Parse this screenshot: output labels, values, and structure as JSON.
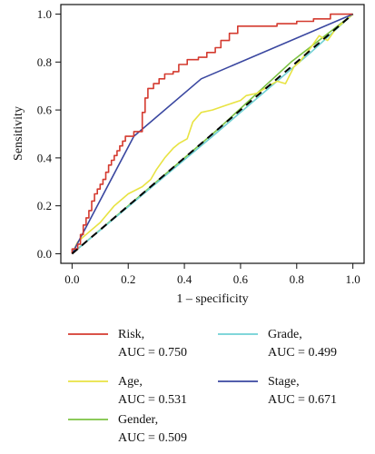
{
  "chart_data": {
    "type": "line",
    "title": "",
    "xlabel": "1 – specificity",
    "ylabel": "Sensitivity",
    "xlim": [
      -0.04,
      1.04
    ],
    "ylim": [
      -0.04,
      1.04
    ],
    "xticks": [
      "0.0",
      "0.2",
      "0.4",
      "0.6",
      "0.8",
      "1.0"
    ],
    "yticks": [
      "0.0",
      "0.2",
      "0.4",
      "0.6",
      "0.8",
      "1.0"
    ],
    "grid": false,
    "legend_position": "bottom",
    "reference_line": {
      "from": [
        0,
        0
      ],
      "to": [
        1,
        1
      ],
      "style": "dashed",
      "color": "#000000"
    },
    "series": [
      {
        "name": "Risk",
        "auc_label": "AUC = 0.750",
        "color": "#d43a2f",
        "step": true,
        "points": [
          [
            0,
            0
          ],
          [
            0,
            0.02
          ],
          [
            0.02,
            0.04
          ],
          [
            0.03,
            0.08
          ],
          [
            0.04,
            0.12
          ],
          [
            0.05,
            0.15
          ],
          [
            0.06,
            0.18
          ],
          [
            0.07,
            0.22
          ],
          [
            0.08,
            0.25
          ],
          [
            0.09,
            0.27
          ],
          [
            0.1,
            0.29
          ],
          [
            0.11,
            0.31
          ],
          [
            0.12,
            0.34
          ],
          [
            0.13,
            0.37
          ],
          [
            0.14,
            0.39
          ],
          [
            0.15,
            0.41
          ],
          [
            0.16,
            0.43
          ],
          [
            0.17,
            0.45
          ],
          [
            0.18,
            0.47
          ],
          [
            0.19,
            0.49
          ],
          [
            0.22,
            0.51
          ],
          [
            0.24,
            0.51
          ],
          [
            0.25,
            0.59
          ],
          [
            0.26,
            0.65
          ],
          [
            0.27,
            0.69
          ],
          [
            0.29,
            0.71
          ],
          [
            0.31,
            0.73
          ],
          [
            0.33,
            0.75
          ],
          [
            0.36,
            0.76
          ],
          [
            0.38,
            0.79
          ],
          [
            0.41,
            0.81
          ],
          [
            0.45,
            0.82
          ],
          [
            0.48,
            0.84
          ],
          [
            0.51,
            0.86
          ],
          [
            0.53,
            0.89
          ],
          [
            0.56,
            0.92
          ],
          [
            0.59,
            0.95
          ],
          [
            0.7,
            0.95
          ],
          [
            0.73,
            0.96
          ],
          [
            0.8,
            0.97
          ],
          [
            0.86,
            0.98
          ],
          [
            0.92,
            1.0
          ],
          [
            1.0,
            1.0
          ]
        ]
      },
      {
        "name": "Age",
        "auc_label": "AUC = 0.531",
        "color": "#e8e342",
        "step": false,
        "points": [
          [
            0,
            0
          ],
          [
            0.02,
            0.05
          ],
          [
            0.05,
            0.08
          ],
          [
            0.1,
            0.13
          ],
          [
            0.15,
            0.2
          ],
          [
            0.2,
            0.25
          ],
          [
            0.25,
            0.28
          ],
          [
            0.28,
            0.31
          ],
          [
            0.3,
            0.35
          ],
          [
            0.33,
            0.4
          ],
          [
            0.36,
            0.44
          ],
          [
            0.38,
            0.46
          ],
          [
            0.41,
            0.48
          ],
          [
            0.43,
            0.55
          ],
          [
            0.46,
            0.59
          ],
          [
            0.5,
            0.6
          ],
          [
            0.55,
            0.62
          ],
          [
            0.6,
            0.64
          ],
          [
            0.62,
            0.66
          ],
          [
            0.66,
            0.67
          ],
          [
            0.7,
            0.7
          ],
          [
            0.73,
            0.72
          ],
          [
            0.76,
            0.71
          ],
          [
            0.79,
            0.78
          ],
          [
            0.81,
            0.8
          ],
          [
            0.85,
            0.86
          ],
          [
            0.88,
            0.91
          ],
          [
            0.91,
            0.89
          ],
          [
            0.94,
            0.94
          ],
          [
            0.97,
            0.97
          ],
          [
            1.0,
            1.0
          ]
        ]
      },
      {
        "name": "Gender",
        "auc_label": "AUC = 0.509",
        "color": "#7cc242",
        "step": false,
        "points": [
          [
            0,
            0
          ],
          [
            0.52,
            0.52
          ],
          [
            0.78,
            0.8
          ],
          [
            1.0,
            1.0
          ]
        ]
      },
      {
        "name": "Grade",
        "auc_label": "AUC = 0.499",
        "color": "#6fd0d4",
        "step": false,
        "points": [
          [
            0,
            0
          ],
          [
            0.5,
            0.49
          ],
          [
            0.85,
            0.84
          ],
          [
            1.0,
            1.0
          ]
        ]
      },
      {
        "name": "Stage",
        "auc_label": "AUC = 0.671",
        "color": "#3a47a0",
        "step": false,
        "points": [
          [
            0,
            0
          ],
          [
            0.22,
            0.49
          ],
          [
            0.46,
            0.73
          ],
          [
            1.0,
            1.0
          ]
        ]
      }
    ]
  }
}
